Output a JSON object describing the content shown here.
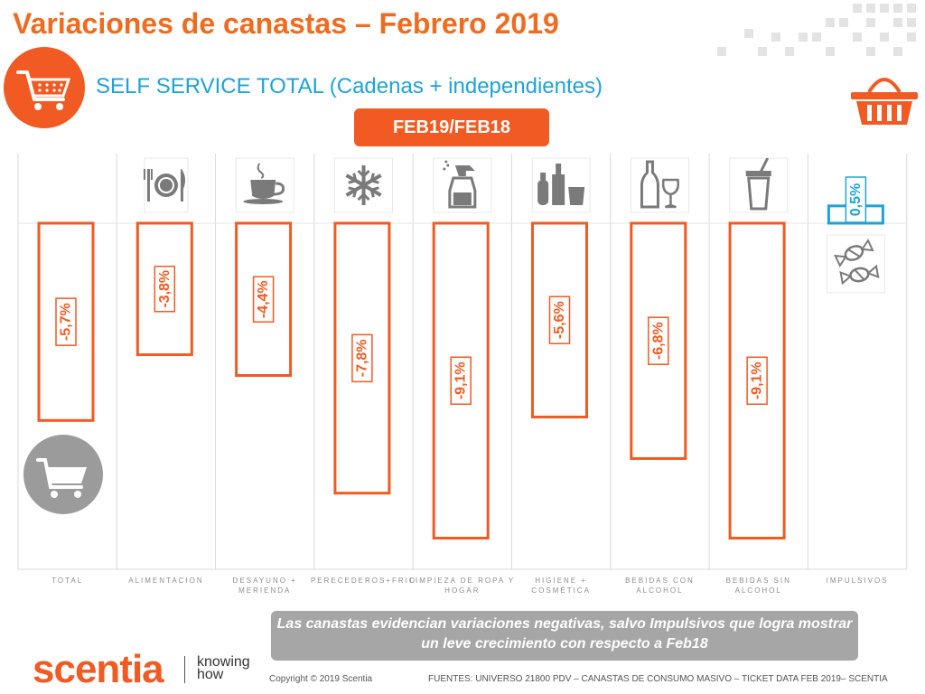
{
  "title": "Variaciones de canastas – Febrero 2019",
  "subtitle": "SELF SERVICE TOTAL (Cadenas + independientes)",
  "period_label": "FEB19/FEB18",
  "message": "Las canastas evidencian variaciones negativas, salvo Impulsivos que logra mostrar un leve crecimiento con respecto a Feb18",
  "brand": {
    "name": "scentia",
    "tagline_line1": "knowing",
    "tagline_line2": "how"
  },
  "footer": {
    "copyright": "Copyright © 2019 Scentia",
    "sources": "FUENTES: UNIVERSO 21800 PDV – CANASTAS DE CONSUMO MASIVO – TICKET DATA FEB 2019– SCENTIA"
  },
  "colors": {
    "accent": "#f15a22",
    "title": "#ee6b1f",
    "positive": "#1ea3d8",
    "grid": "#d9d9d9",
    "icon": "#7a7a7a"
  },
  "chart_data": {
    "type": "bar",
    "categories": [
      "TOTAL",
      "ALIMENTACION",
      "DESAYUNO + MERIENDA",
      "PERECEDEROS+FRIO",
      "LIMPIEZA DE ROPA Y HOGAR",
      "HIGIENE + COSMÉTICA",
      "BEBIDAS CON ALCOHOL",
      "BEBIDAS SIN ALCOHOL",
      "IMPULSIVOS"
    ],
    "category_lines": [
      [
        "TOTAL"
      ],
      [
        "ALIMENTACION"
      ],
      [
        "DESAYUNO +",
        "MERIENDA"
      ],
      [
        "PERECEDEROS+FRIO"
      ],
      [
        "LIMPIEZA DE ROPA Y",
        "HOGAR"
      ],
      [
        "HIGIENE +",
        "COSMÉTICA"
      ],
      [
        "BEBIDAS CON",
        "ALCOHOL"
      ],
      [
        "BEBIDAS SIN",
        "ALCOHOL"
      ],
      [
        "IMPULSIVOS"
      ]
    ],
    "values": [
      -5.7,
      -3.8,
      -4.4,
      -7.8,
      -9.1,
      -5.6,
      -6.8,
      -9.1,
      0.5
    ],
    "labels": [
      "-5,7%",
      "-3,8%",
      "-4,4%",
      "-7,8%",
      "-9,1%",
      "-5,6%",
      "-6,8%",
      "-9,1%",
      "0,5%"
    ],
    "icons": [
      "cart-icon",
      "cutlery-icon",
      "coffee-cup-icon",
      "snowflake-icon",
      "spray-bottle-icon",
      "cosmetics-icon",
      "wine-icon",
      "soda-cup-icon",
      "candy-icon"
    ],
    "unit": "%",
    "ylim": [
      -9.1,
      0.5
    ],
    "grid": false
  }
}
